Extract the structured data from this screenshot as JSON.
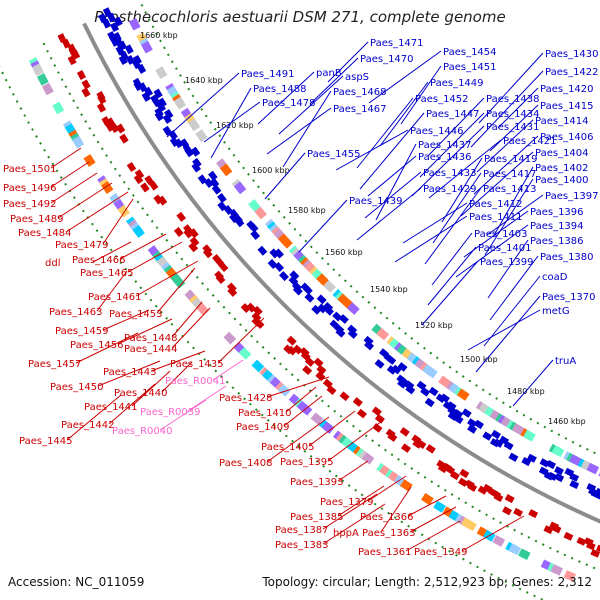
{
  "title": "Prosthecochloris aestuarii DSM 271, complete genome",
  "accession": "Accession: NC_011059",
  "summary": "Topology: circular; Length: 2,512,923 bp; Genes: 2,312",
  "colors": {
    "forward": "#0000cc",
    "reverse": "#cc0000",
    "rna": "#ff66cc",
    "backbone": "#8c8c8c",
    "dots": "#228822"
  },
  "ticks": [
    "1660 kbp",
    "1640 kbp",
    "1620 kbp",
    "1600 kbp",
    "1580 kbp",
    "1560 kbp",
    "1540 kbp",
    "1520 kbp",
    "1500 kbp",
    "1480 kbp",
    "1460 kbp"
  ],
  "blue_labels": [
    "Paes_1471",
    "Paes_1470",
    "panB",
    "aspS",
    "Paes_1491",
    "Paes_1488",
    "Paes_1468",
    "Paes_1478",
    "Paes_1467",
    "Paes_1454",
    "Paes_1451",
    "Paes_1449",
    "Paes_1452",
    "Paes_1447",
    "Paes_1446",
    "Paes_1455",
    "Paes_1439",
    "Paes_1438",
    "Paes_1434",
    "Paes_1431",
    "Paes_1437",
    "Paes_1436",
    "Paes_1433",
    "Paes_1429",
    "Paes_1421",
    "Paes_1419",
    "Paes_1417",
    "Paes_1413",
    "Paes_1412",
    "Paes_1411",
    "Paes_1403",
    "Paes_1401",
    "Paes_1399",
    "Paes_1430",
    "Paes_1422",
    "Paes_1420",
    "Paes_1415",
    "Paes_1414",
    "Paes_1406",
    "Paes_1404",
    "Paes_1402",
    "Paes_1400",
    "Paes_1397",
    "Paes_1396",
    "Paes_1394",
    "Paes_1386",
    "Paes_1380",
    "coaD",
    "Paes_1370",
    "metG",
    "truA"
  ],
  "red_labels": [
    "Paes_1501",
    "Paes_1496",
    "Paes_1492",
    "Paes_1489",
    "Paes_1484",
    "Paes_1479",
    "ddl",
    "Paes_1466",
    "Paes_1465",
    "Paes_1461",
    "Paes_1463",
    "Paes_1453",
    "Paes_1459",
    "Paes_1456",
    "Paes_1457",
    "Paes_1448",
    "Paes_1444",
    "Paes_1435",
    "Paes_1443",
    "Paes_1450",
    "Paes_1440",
    "Paes_1441",
    "Paes_1442",
    "Paes_1445",
    "Paes_1428",
    "Paes_1410",
    "Paes_1409",
    "Paes_1405",
    "Paes_1395",
    "Paes_1408",
    "Paes_1393",
    "Paes_1379",
    "Paes_1385",
    "Paes_1387",
    "Paes_1383",
    "hppA",
    "Paes_1366",
    "Paes_1363",
    "Paes_1361",
    "Paes_1349"
  ],
  "rna_labels": [
    "Paes_R0041",
    "Paes_R0039",
    "Paes_R0040"
  ]
}
